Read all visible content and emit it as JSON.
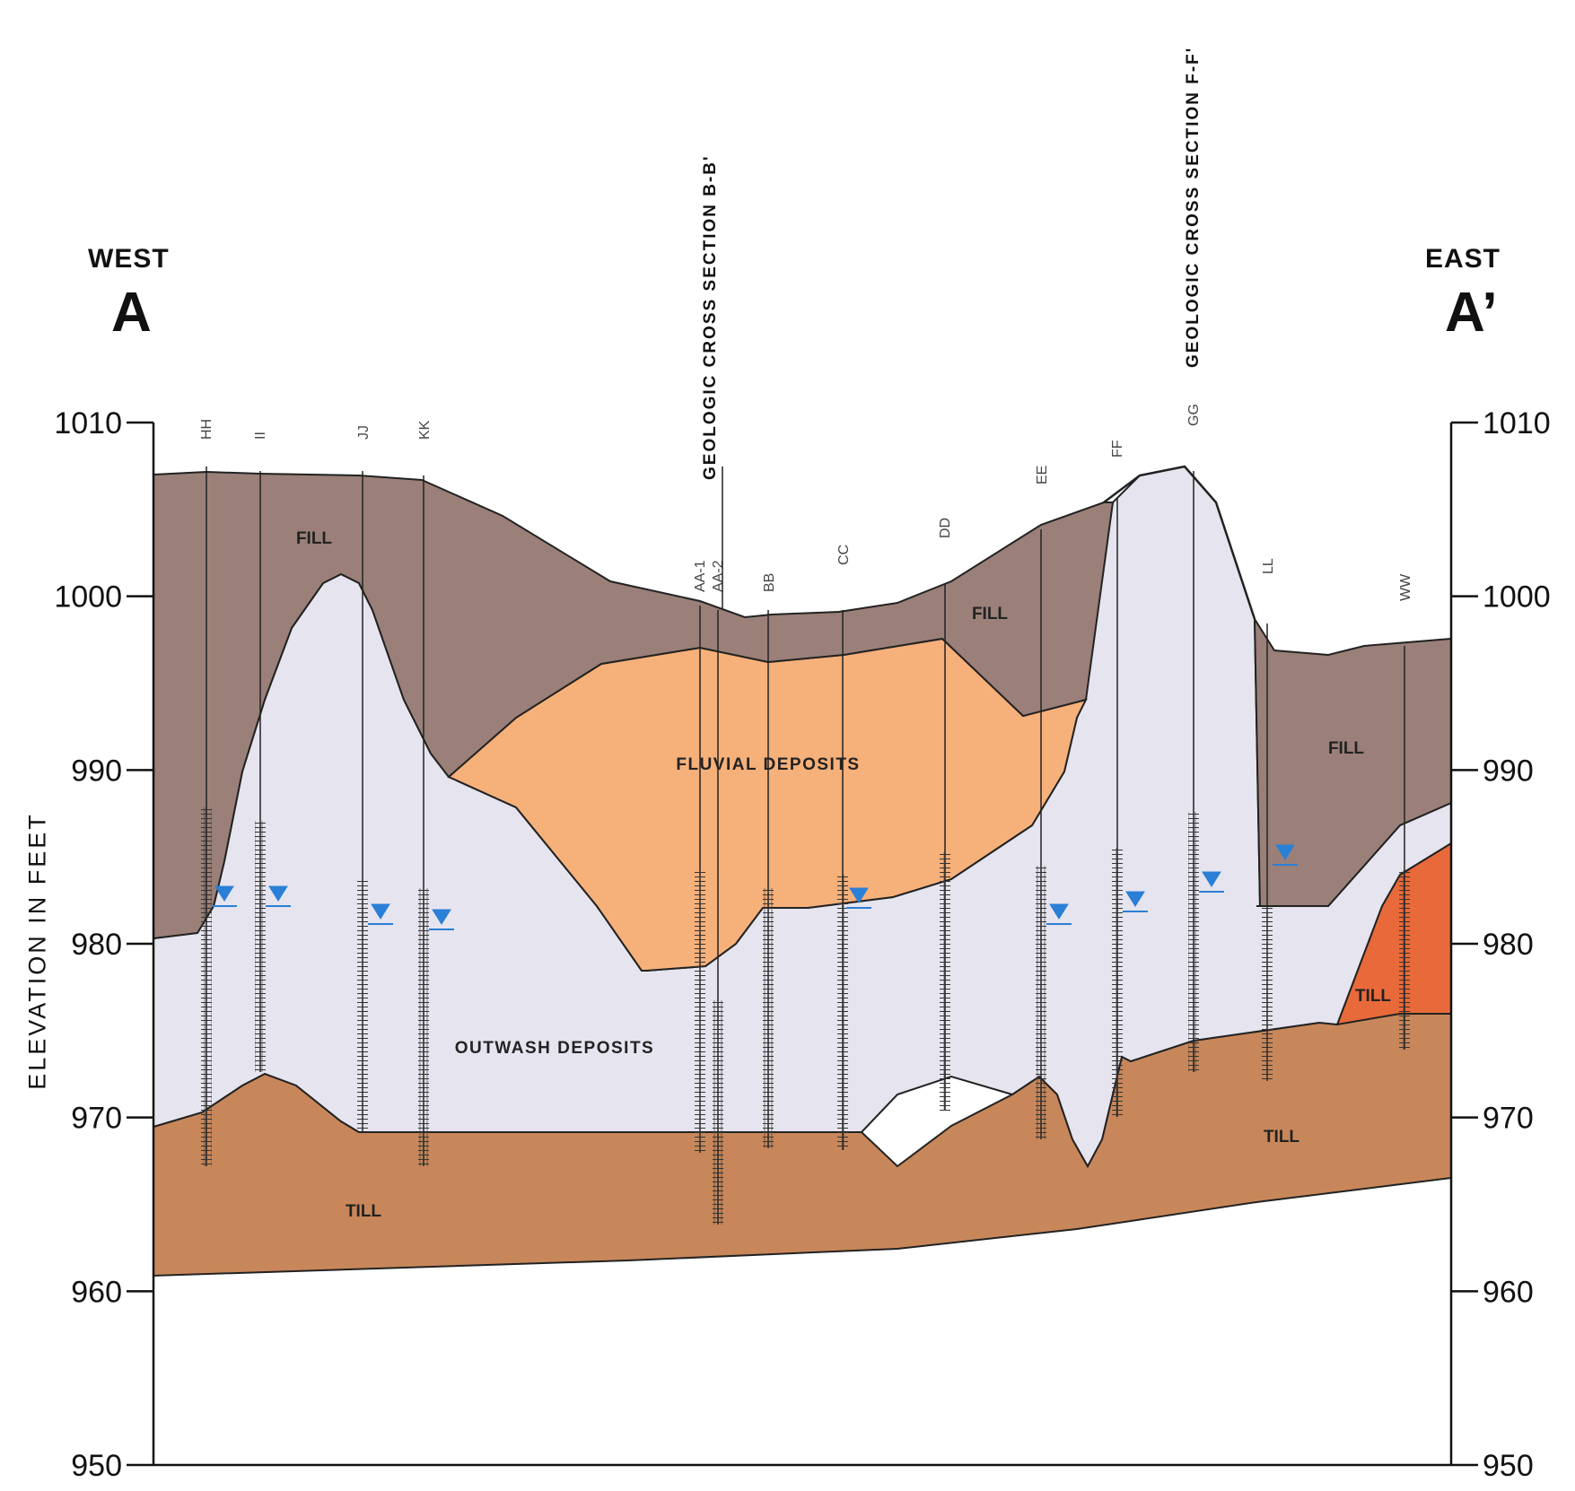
{
  "directions": {
    "west_word": "WEST",
    "west_letter": "A",
    "east_word": "EAST",
    "east_letter": "A’"
  },
  "axis": {
    "ylabel": "ELEVATION IN FEET",
    "ticks": [
      1010,
      1000,
      990,
      980,
      970,
      960,
      950
    ],
    "ymin": 950,
    "ymax": 1010
  },
  "unit_labels": {
    "fill": "FILL",
    "fluvial": "FLUVIAL DEPOSITS",
    "outwash": "OUTWASH DEPOSITS",
    "till": "TILL"
  },
  "cross_sections": {
    "bb": "GEOLOGIC CROSS SECTION B-B'",
    "ff": "GEOLOGIC CROSS SECTION F-F'"
  },
  "borings": [
    "HH",
    "II",
    "JJ",
    "KK",
    "AA-1",
    "AA-2",
    "BB",
    "CC",
    "DD",
    "EE",
    "FF",
    "GG",
    "LL",
    "WW"
  ],
  "colors": {
    "fill": "#9a8078",
    "fluvial": "#f6b07a",
    "outwash": "#e6e4ee",
    "till": "#c8875a",
    "till_red": "#e86a3a",
    "water": "#2a7fd6"
  }
}
